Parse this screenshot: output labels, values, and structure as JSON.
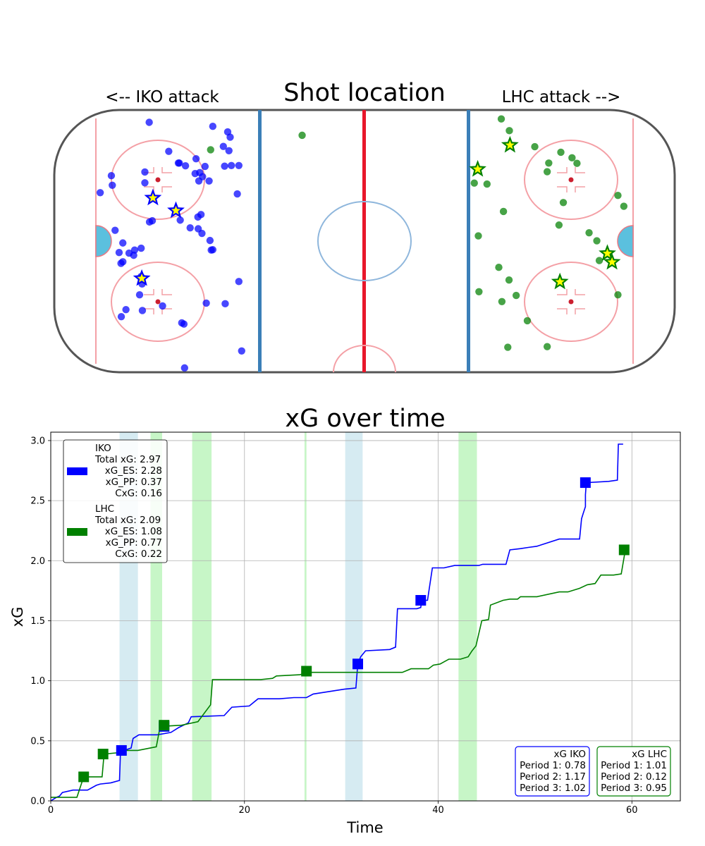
{
  "rink": {
    "title": "Shot location",
    "left_label": "<-- IKO attack",
    "right_label": "LHC attack -->"
  },
  "chart_data": [
    {
      "type": "scatter",
      "title": "Shot location",
      "annotations": [
        "<-- IKO attack",
        "LHC attack -->"
      ],
      "xlim": [
        -100,
        100
      ],
      "ylim": [
        -42.5,
        42.5
      ],
      "colors": {
        "IKO": "#0000ff",
        "LHC": "#008000",
        "goal_star_fill": "#ffff00"
      },
      "series": [
        {
          "name": "IKO",
          "shots": [
            [
              -69.4,
              38.5
            ],
            [
              -48.9,
              37.2
            ],
            [
              -44.1,
              35.4
            ],
            [
              -43.3,
              33.7
            ],
            [
              -63.1,
              29.1
            ],
            [
              -45.5,
              30.7
            ],
            [
              -43.7,
              29.3
            ],
            [
              -54.3,
              26.7
            ],
            [
              -81.6,
              21.2
            ],
            [
              -57.7,
              24.4
            ],
            [
              -60,
              25.3
            ],
            [
              -59.7,
              25.3
            ],
            [
              -51.4,
              24.2
            ],
            [
              -53.1,
              22.2
            ],
            [
              -70.8,
              22.4
            ],
            [
              -54.6,
              21.9
            ],
            [
              -52.2,
              20.9
            ],
            [
              -45.1,
              24.3
            ],
            [
              -42.9,
              24.5
            ],
            [
              -40.5,
              24.5
            ],
            [
              -70.8,
              18.9
            ],
            [
              -53.4,
              19.5
            ],
            [
              -81.3,
              18.1
            ],
            [
              -85.2,
              15.7
            ],
            [
              -50.1,
              19.5
            ],
            [
              -41,
              15.3
            ],
            [
              -52.7,
              8.6
            ],
            [
              -52.4,
              2.5
            ],
            [
              -80.4,
              3.5
            ],
            [
              -53.7,
              7.8
            ],
            [
              -53.6,
              4
            ],
            [
              -59.4,
              6.8
            ],
            [
              -68.4,
              6.6
            ],
            [
              -69.3,
              6.2
            ],
            [
              -77.9,
              -0.6
            ],
            [
              -49.8,
              0.2
            ],
            [
              -56.2,
              4.3
            ],
            [
              -72,
              -2.3
            ],
            [
              -74.1,
              -2.9
            ],
            [
              -75.9,
              -3.9
            ],
            [
              -49.4,
              -2.9
            ],
            [
              -79.1,
              -3.7
            ],
            [
              -78.5,
              -7.2
            ],
            [
              -74.4,
              -4.6
            ],
            [
              -77.9,
              -6.7
            ],
            [
              -48.9,
              -2.8
            ],
            [
              -72,
              -11.5
            ],
            [
              -71.7,
              -13.9
            ],
            [
              -40.5,
              -13.1
            ],
            [
              -44.9,
              -20.3
            ],
            [
              -72.5,
              -17.4
            ],
            [
              -76.9,
              -22.2
            ],
            [
              -58.9,
              -26.5
            ],
            [
              -58.2,
              -26.9
            ],
            [
              -39.6,
              -35.6
            ],
            [
              -78.4,
              -24.5
            ],
            [
              -71.6,
              -22.5
            ],
            [
              -58,
              -41.1
            ],
            [
              -65.1,
              -21
            ],
            [
              -51,
              -20.1
            ]
          ],
          "goals": [
            [
              -68.2,
              14
            ],
            [
              -60.8,
              9.9
            ],
            [
              -71.8,
              -12.1
            ]
          ]
        },
        {
          "name": "LHC",
          "shots": [
            [
              -49.6,
              29.6
            ],
            [
              -20.1,
              34.3
            ],
            [
              44.1,
              39.6
            ],
            [
              46.7,
              35.8
            ],
            [
              54.9,
              30.6
            ],
            [
              63.3,
              28.8
            ],
            [
              66.9,
              27
            ],
            [
              68.5,
              25.2
            ],
            [
              59.4,
              25.3
            ],
            [
              58.9,
              22.5
            ],
            [
              35.4,
              18.8
            ],
            [
              39.5,
              18.5
            ],
            [
              81.7,
              14.8
            ],
            [
              64.1,
              12.5
            ],
            [
              83.6,
              11.3
            ],
            [
              44.8,
              9.6
            ],
            [
              62.7,
              5.2
            ],
            [
              72.4,
              2.7
            ],
            [
              36.7,
              1.7
            ],
            [
              74.9,
              0.1
            ],
            [
              75.7,
              -6.3
            ],
            [
              43.3,
              -8.5
            ],
            [
              46.6,
              -12.6
            ],
            [
              36.9,
              -16.4
            ],
            [
              44.3,
              -19.6
            ],
            [
              81.7,
              -17.4
            ],
            [
              48.9,
              -17.6
            ],
            [
              58.9,
              -34.2
            ],
            [
              46.2,
              -34.4
            ],
            [
              52.5,
              -25.8
            ]
          ],
          "goals": [
            [
              46.9,
              31.1
            ],
            [
              36.5,
              23.3
            ],
            [
              78.3,
              -4
            ],
            [
              79.8,
              -6.8
            ],
            [
              63,
              -13.2
            ]
          ]
        }
      ]
    },
    {
      "type": "line",
      "title": "xG over time",
      "xlabel": "Time",
      "ylabel": "xG",
      "xlim": [
        0,
        65
      ],
      "ylim": [
        0,
        3.07
      ],
      "xticks": [
        0,
        20,
        40,
        60
      ],
      "yticks": [
        0.0,
        0.5,
        1.0,
        1.5,
        2.0,
        2.5,
        3.0
      ],
      "grid": true,
      "power_play_bands": [
        {
          "team": "IKO",
          "start": 7.1,
          "end": 9.0,
          "color": "#add8e6"
        },
        {
          "team": "LHC",
          "start": 10.3,
          "end": 11.5,
          "color": "#90ee90"
        },
        {
          "team": "LHC",
          "start": 14.6,
          "end": 16.6,
          "color": "#90ee90"
        },
        {
          "team": "LHC",
          "start": 26.2,
          "end": 26.4,
          "color": "#90ee90"
        },
        {
          "team": "IKO",
          "start": 30.4,
          "end": 32.2,
          "color": "#add8e6"
        },
        {
          "team": "LHC",
          "start": 42.1,
          "end": 44.0,
          "color": "#90ee90"
        }
      ],
      "series": [
        {
          "name": "IKO",
          "color": "#0000ff",
          "points": [
            [
              0,
              0
            ],
            [
              0.6,
              0.03
            ],
            [
              0.9,
              0.04
            ],
            [
              1.2,
              0.07
            ],
            [
              2.3,
              0.09
            ],
            [
              3.8,
              0.09
            ],
            [
              4.7,
              0.13
            ],
            [
              5.1,
              0.14
            ],
            [
              6.2,
              0.15
            ],
            [
              7.1,
              0.17
            ],
            [
              7.2,
              0.41
            ],
            [
              8.3,
              0.44
            ],
            [
              8.5,
              0.52
            ],
            [
              9.1,
              0.55
            ],
            [
              11.0,
              0.55
            ],
            [
              12.4,
              0.57
            ],
            [
              13.2,
              0.61
            ],
            [
              14.2,
              0.65
            ],
            [
              14.5,
              0.7
            ],
            [
              17.9,
              0.71
            ],
            [
              18.7,
              0.78
            ],
            [
              20.5,
              0.79
            ],
            [
              21.4,
              0.85
            ],
            [
              23.6,
              0.85
            ],
            [
              25.1,
              0.86
            ],
            [
              26.4,
              0.86
            ],
            [
              27.1,
              0.89
            ],
            [
              30.3,
              0.93
            ],
            [
              31.5,
              0.94
            ],
            [
              31.7,
              1.14
            ],
            [
              32.0,
              1.2
            ],
            [
              32.5,
              1.25
            ],
            [
              35.0,
              1.26
            ],
            [
              35.6,
              1.28
            ],
            [
              35.8,
              1.6
            ],
            [
              37.8,
              1.6
            ],
            [
              38.2,
              1.61
            ],
            [
              38.3,
              1.67
            ],
            [
              38.9,
              1.67
            ],
            [
              39.4,
              1.94
            ],
            [
              40.6,
              1.94
            ],
            [
              41.7,
              1.96
            ],
            [
              44.2,
              1.96
            ],
            [
              44.6,
              1.97
            ],
            [
              47.0,
              1.97
            ],
            [
              47.4,
              2.09
            ],
            [
              48.5,
              2.1
            ],
            [
              49.3,
              2.11
            ],
            [
              50.2,
              2.12
            ],
            [
              52.5,
              2.18
            ],
            [
              54.6,
              2.18
            ],
            [
              54.8,
              2.35
            ],
            [
              55.0,
              2.4
            ],
            [
              55.2,
              2.45
            ],
            [
              55.2,
              2.55
            ],
            [
              55.3,
              2.65
            ],
            [
              57.6,
              2.66
            ],
            [
              58.5,
              2.67
            ],
            [
              58.6,
              2.97
            ],
            [
              59.1,
              2.97
            ]
          ],
          "markers": [
            [
              7.3,
              0.42
            ],
            [
              11.7,
              0.62
            ],
            [
              31.7,
              1.14
            ],
            [
              38.2,
              1.67
            ],
            [
              55.2,
              2.65
            ]
          ]
        },
        {
          "name": "LHC",
          "color": "#008000",
          "points": [
            [
              0,
              0.03
            ],
            [
              2.7,
              0.03
            ],
            [
              3.4,
              0.2
            ],
            [
              5.3,
              0.2
            ],
            [
              5.5,
              0.39
            ],
            [
              6.8,
              0.4
            ],
            [
              7.4,
              0.42
            ],
            [
              9.0,
              0.42
            ],
            [
              10.9,
              0.45
            ],
            [
              11.3,
              0.62
            ],
            [
              13.5,
              0.63
            ],
            [
              15.2,
              0.66
            ],
            [
              16.5,
              0.8
            ],
            [
              16.7,
              1.01
            ],
            [
              21.7,
              1.01
            ],
            [
              22.9,
              1.02
            ],
            [
              23.3,
              1.04
            ],
            [
              25.7,
              1.05
            ],
            [
              26.6,
              1.07
            ],
            [
              36.3,
              1.07
            ],
            [
              37.2,
              1.1
            ],
            [
              39.0,
              1.1
            ],
            [
              39.5,
              1.13
            ],
            [
              40.2,
              1.14
            ],
            [
              41.1,
              1.18
            ],
            [
              42.3,
              1.18
            ],
            [
              43.1,
              1.2
            ],
            [
              43.5,
              1.25
            ],
            [
              43.9,
              1.29
            ],
            [
              44.5,
              1.5
            ],
            [
              45.2,
              1.51
            ],
            [
              45.4,
              1.63
            ],
            [
              46.7,
              1.67
            ],
            [
              47.4,
              1.68
            ],
            [
              48.2,
              1.68
            ],
            [
              48.5,
              1.7
            ],
            [
              49.7,
              1.7
            ],
            [
              50.2,
              1.7
            ],
            [
              52.5,
              1.74
            ],
            [
              53.4,
              1.74
            ],
            [
              54.6,
              1.77
            ],
            [
              55.4,
              1.8
            ],
            [
              56.2,
              1.81
            ],
            [
              56.8,
              1.88
            ],
            [
              58.1,
              1.88
            ],
            [
              58.9,
              1.89
            ],
            [
              59.3,
              2.08
            ]
          ],
          "markers": [
            [
              3.4,
              0.2
            ],
            [
              5.4,
              0.39
            ],
            [
              11.7,
              0.63
            ],
            [
              26.4,
              1.08
            ],
            [
              59.2,
              2.09
            ]
          ]
        }
      ],
      "legend": {
        "placement": "upper-left",
        "entries": [
          {
            "color": "#0000ff",
            "lines": [
              "IKO",
              "Total xG: 2.97",
              "xG_ES: 2.28",
              "xG_PP: 0.37",
              "CxG: 0.16"
            ]
          },
          {
            "color": "#008000",
            "lines": [
              "LHC",
              "Total xG: 2.09",
              "xG_ES: 1.08",
              "xG_PP: 0.77",
              "CxG: 0.22"
            ]
          }
        ]
      },
      "period_boxes": [
        {
          "color": "#0000ff",
          "lines": [
            "xG IKO",
            "Period 1: 0.78",
            "Period 2: 1.17",
            "Period 3: 1.02"
          ]
        },
        {
          "color": "#008000",
          "lines": [
            "xG LHC",
            "Period 1: 1.01",
            "Period 2: 0.12",
            "Period 3: 0.95"
          ]
        }
      ]
    }
  ]
}
